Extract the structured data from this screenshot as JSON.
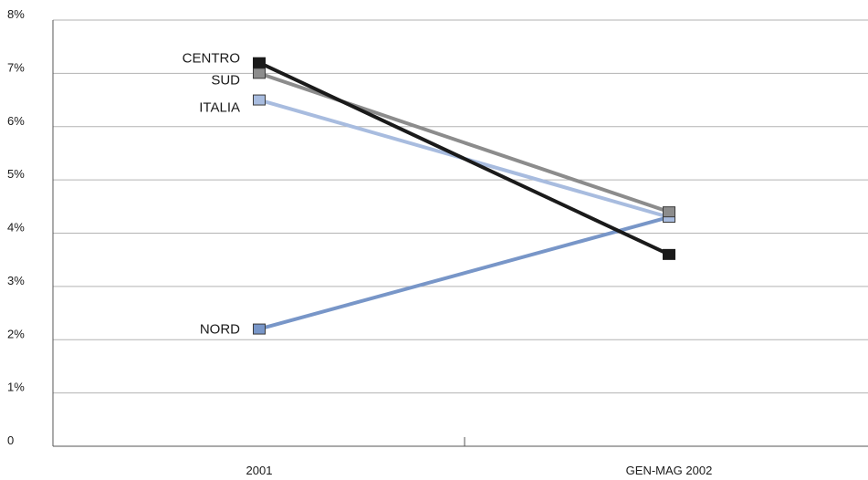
{
  "chart_data": {
    "type": "line",
    "title": "",
    "xlabel": "",
    "ylabel": "",
    "categories": [
      "2001",
      "GEN-MAG 2002"
    ],
    "y_tick_labels": [
      "0",
      "1%",
      "2%",
      "3%",
      "4%",
      "5%",
      "6%",
      "7%",
      "8%"
    ],
    "ylim": [
      0,
      8
    ],
    "grid": true,
    "legend": "none (labels placed next to the 2001 points)",
    "series": [
      {
        "name": "CENTRO",
        "values": [
          7.2,
          3.6
        ],
        "color": "#1a1a1a"
      },
      {
        "name": "SUD",
        "values": [
          7.0,
          4.4
        ],
        "color": "#8c8c8c"
      },
      {
        "name": "ITALIA",
        "values": [
          6.5,
          4.3
        ],
        "color": "#a8bcdf"
      },
      {
        "name": "NORD",
        "values": [
          2.2,
          4.3
        ],
        "color": "#7896c8"
      }
    ]
  }
}
